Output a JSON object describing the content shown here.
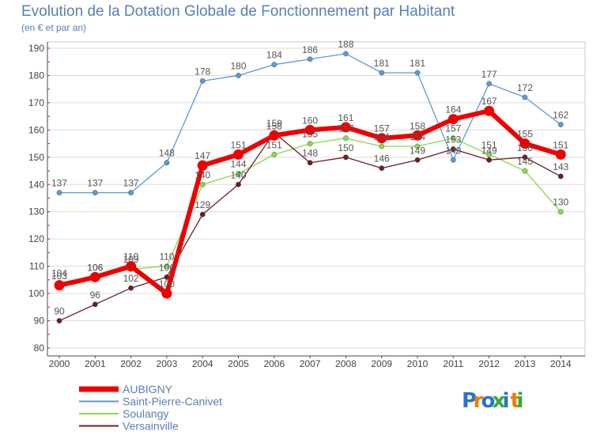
{
  "title": "Evolution de la Dotation Globale de Fonctionnement par Habitant",
  "subtitle": "(en € et par an)",
  "logo_text": "Proxiti",
  "colors": {
    "title": "#5a7fb5",
    "grid": "#dcdcdc",
    "axis": "#4a4a4a",
    "legend_text": "#5a7fb5"
  },
  "chart_data": {
    "type": "line",
    "title": "Evolution de la Dotation Globale de Fonctionnement par Habitant",
    "subtitle": "(en € et par an)",
    "xlabel": "",
    "ylabel": "",
    "categories": [
      "2000",
      "2001",
      "2002",
      "2003",
      "2004",
      "2005",
      "2006",
      "2007",
      "2008",
      "2009",
      "2010",
      "2011",
      "2012",
      "2013",
      "2014"
    ],
    "ylim": [
      80,
      190
    ],
    "yticks": [
      80,
      90,
      100,
      110,
      120,
      130,
      140,
      150,
      160,
      170,
      180,
      190
    ],
    "grid": true,
    "legend_position": "bottom-left",
    "series": [
      {
        "name": "Saint-Pierre-Canivet",
        "color": "#5b9ad5",
        "width": 1.3,
        "marker": 3.2,
        "values": [
          137,
          137,
          137,
          148,
          178,
          180,
          184,
          186,
          188,
          181,
          181,
          149,
          177,
          172,
          162
        ]
      },
      {
        "name": "Soulangy",
        "color": "#88d94a",
        "width": 1.3,
        "marker": 3.2,
        "values": [
          104,
          106,
          109,
          110,
          140,
          144,
          151,
          155,
          157,
          154,
          154,
          157,
          151,
          145,
          130
        ]
      },
      {
        "name": "Versainville",
        "color": "#6b1f24",
        "width": 1.3,
        "marker": 3.2,
        "values": [
          90,
          96,
          102,
          106,
          129,
          140,
          159,
          148,
          150,
          146,
          149,
          153,
          149,
          150,
          143
        ]
      },
      {
        "name": "AUBIGNY",
        "color": "#ee0000",
        "width": 6,
        "marker": 6.5,
        "values": [
          103,
          106,
          110,
          100,
          147,
          151,
          158,
          160,
          161,
          157,
          158,
          164,
          167,
          155,
          151
        ]
      }
    ],
    "legend_order": [
      "AUBIGNY",
      "Saint-Pierre-Canivet",
      "Soulangy",
      "Versainville"
    ]
  }
}
